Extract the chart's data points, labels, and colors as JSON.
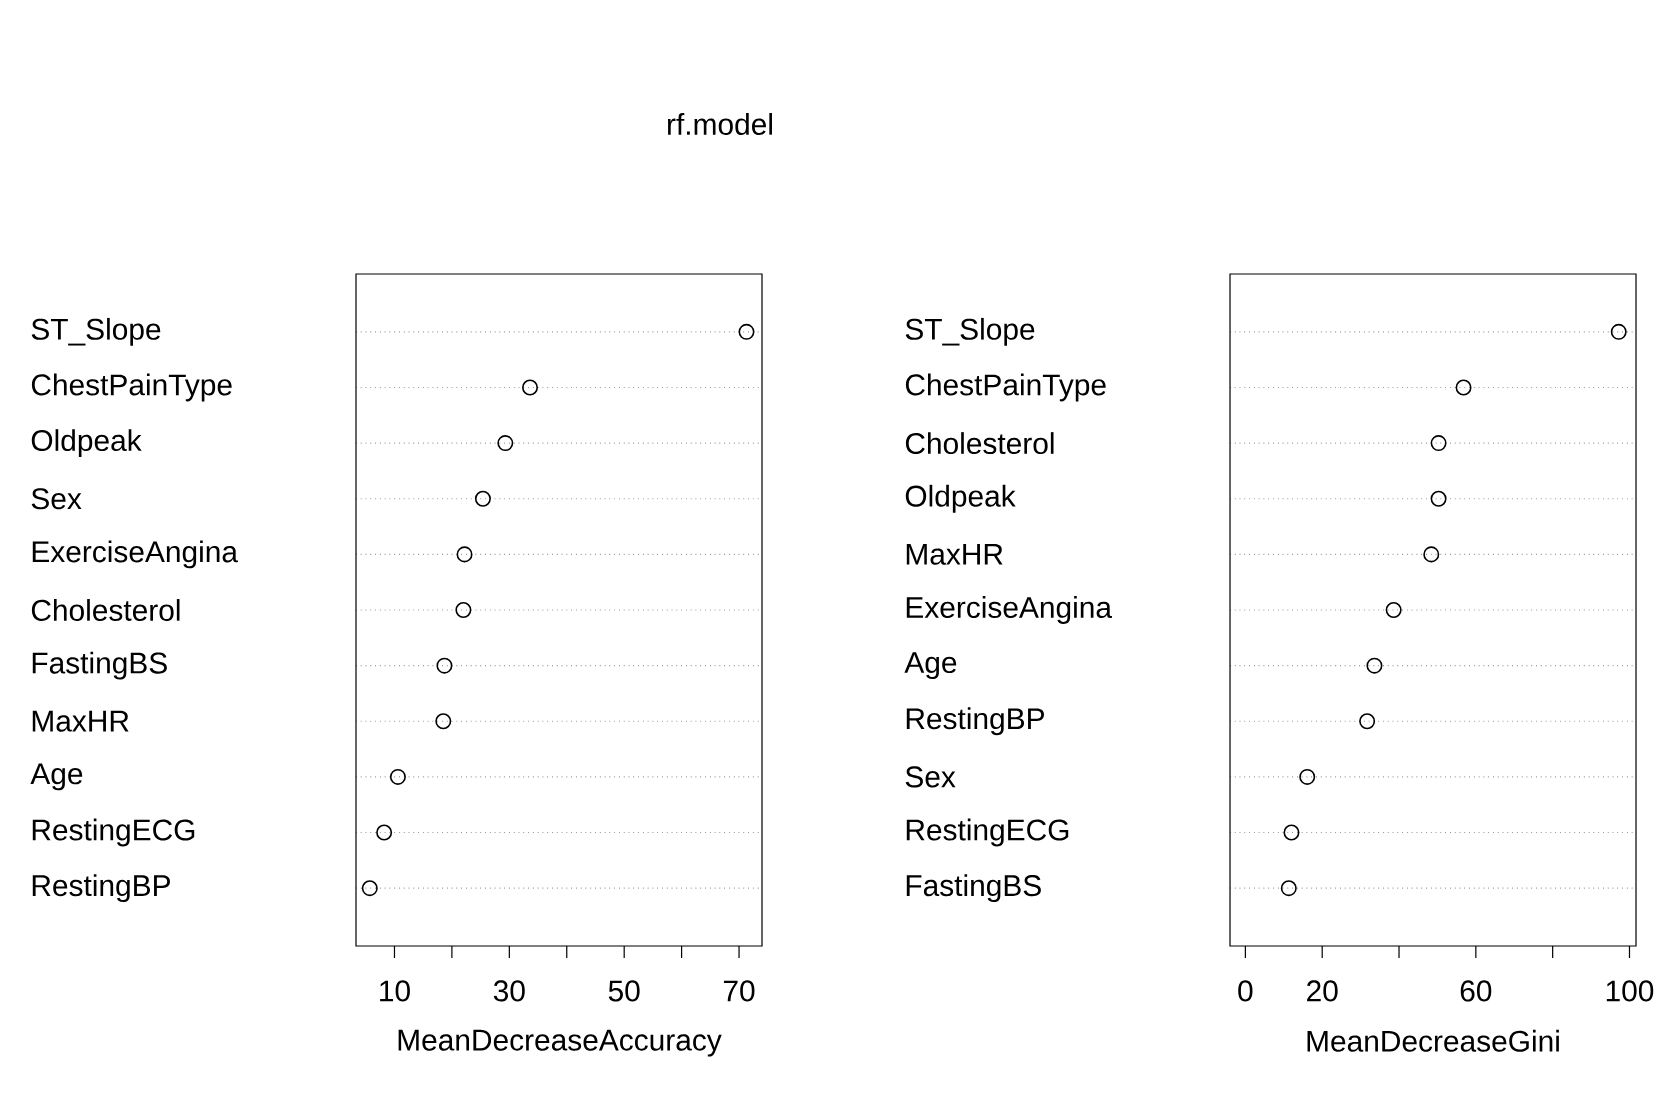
{
  "chart_data": [
    {
      "type": "scatter",
      "title": "rf.model",
      "orientation": "horizontal",
      "xlabel": "MeanDecreaseAccuracy",
      "categories": [
        "ST_Slope",
        "ChestPainType",
        "Oldpeak",
        "Sex",
        "ExerciseAngina",
        "Cholesterol",
        "FastingBS",
        "MaxHR",
        "Age",
        "RestingECG",
        "RestingBP"
      ],
      "values": [
        71.3,
        33.6,
        29.3,
        25.4,
        22.2,
        22.0,
        18.7,
        18.5,
        10.6,
        8.2,
        5.7
      ],
      "color": "#000000",
      "marker": "circle",
      "grid": "y",
      "xlim": [
        3.3,
        74.0
      ],
      "xticks": [
        10,
        {
          "value": 20,
          "label": null
        },
        30,
        {
          "value": 40,
          "label": null
        },
        50,
        {
          "value": 60,
          "label": null
        },
        70
      ]
    },
    {
      "type": "scatter",
      "orientation": "horizontal",
      "xlabel": "MeanDecreaseGini",
      "categories": [
        "ST_Slope",
        "ChestPainType",
        "Cholesterol",
        "Oldpeak",
        "MaxHR",
        "ExerciseAngina",
        "Age",
        "RestingBP",
        "Sex",
        "RestingECG",
        "FastingBS"
      ],
      "values": [
        97.2,
        56.8,
        50.3,
        50.3,
        48.4,
        38.6,
        33.6,
        31.7,
        16.1,
        12.0,
        11.3
      ],
      "color": "#000000",
      "marker": "circle",
      "grid": "y",
      "xlim": [
        -4.0,
        101.7
      ],
      "xticks": [
        0,
        20,
        {
          "value": 40,
          "label": null
        },
        60,
        {
          "value": 80,
          "label": null
        },
        100
      ]
    }
  ]
}
